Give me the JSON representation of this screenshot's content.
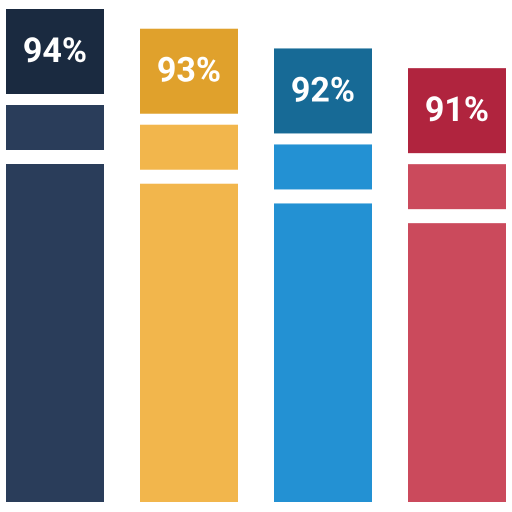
{
  "chart_data": {
    "type": "bar",
    "categories": [
      null,
      null,
      null,
      null
    ],
    "values": [
      94,
      93,
      92,
      91
    ],
    "value_labels": [
      "94%",
      "93%",
      "92%",
      "91%"
    ],
    "colors": [
      "#2a3d5a",
      "#f2b64c",
      "#2391d3",
      "#cb4a5c"
    ],
    "label_colors": [
      "#1a2a40",
      "#e0a12c",
      "#176a96",
      "#b0243e"
    ],
    "ylim": [
      69,
      94
    ]
  }
}
